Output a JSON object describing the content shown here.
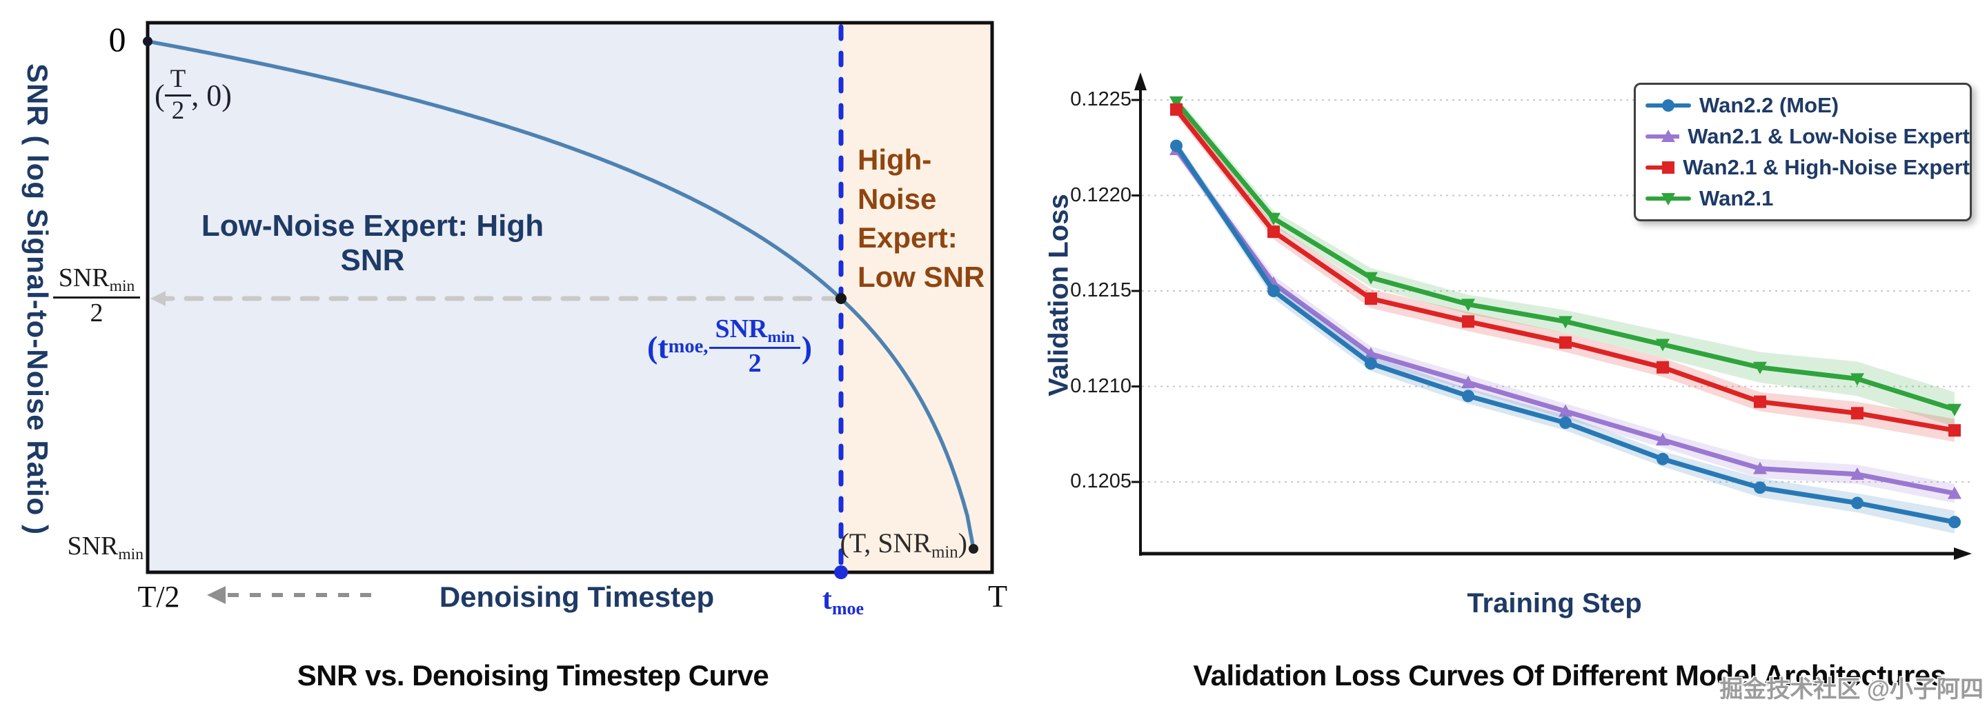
{
  "left_chart": {
    "caption": "SNR vs. Denoising Timestep Curve",
    "y_axis_title": "SNR ( log Signal-to-Noise Ratio )",
    "x_axis_title": "Denoising Timestep",
    "y_ticks": {
      "zero": "0",
      "frac_num_base": "SNR",
      "frac_num_sub": "min",
      "frac_den": "2",
      "min_base": "SNR",
      "min_sub": "min"
    },
    "x_ticks": {
      "left": "T/2",
      "moe_base": "t",
      "moe_sub": "moe",
      "right": "T"
    },
    "regions": {
      "low_noise_label": "Low-Noise Expert: High SNR",
      "high_noise_lines": [
        "High-",
        "Noise",
        "Expert:",
        "Low SNR"
      ]
    },
    "annotations": {
      "start_open": "(",
      "start_num": "T",
      "start_den": "2",
      "start_rest": ", 0)",
      "moe_open": "(t",
      "moe_sub": "moe,",
      "moe_num_base": "SNR",
      "moe_num_sub": "min",
      "moe_den": "2",
      "moe_close": ")",
      "end_open": "(T, ",
      "end_base": "SNR",
      "end_sub": "min",
      "end_close": ")"
    },
    "colors": {
      "low_region": "#e9edf5",
      "high_region": "#fcf1e4",
      "curve": "#4d82b2",
      "tmoe_line": "#1b2ed9",
      "annotation_blue": "#1633d2",
      "navy": "#1e3a66",
      "brown": "#8f4511",
      "dashed_gray": "#c9c9c9"
    }
  },
  "right_chart": {
    "caption": "Validation Loss Curves Of Different Model Architectures",
    "chart_data": {
      "type": "line",
      "title": "Validation Loss Curves Of Different Model Architectures",
      "xlabel": "Training Step",
      "ylabel": "Validation Loss",
      "x": [
        1,
        2,
        3,
        4,
        5,
        6,
        7,
        8,
        9
      ],
      "x_tick_labels": [],
      "y_ticks": [
        0.1225,
        0.122,
        0.1215,
        0.121,
        0.1205
      ],
      "y_tick_labels": [
        "0.1225",
        "0.1220",
        "0.1215",
        "0.1210",
        "0.1205"
      ],
      "ylim": [
        0.12015,
        0.12285
      ],
      "grid": true,
      "legend_position": "upper right",
      "series": [
        {
          "name": "Wan2.2 (MoE)",
          "color": "#2878b5",
          "marker": "circle",
          "values": [
            0.12226,
            0.1215,
            0.12112,
            0.12095,
            0.12081,
            0.12062,
            0.12047,
            0.12039,
            0.12029
          ],
          "band_halfwidth": [
            3e-05,
            4e-05,
            4e-05,
            4e-05,
            4e-05,
            4e-05,
            5e-05,
            5e-05,
            6e-05
          ]
        },
        {
          "name": "Wan2.1 & Low-Noise Expert",
          "color": "#9a77d1",
          "marker": "triangle-up",
          "values": [
            0.12224,
            0.12154,
            0.12117,
            0.12102,
            0.12087,
            0.12072,
            0.12057,
            0.12054,
            0.12044
          ],
          "band_halfwidth": [
            3e-05,
            4e-05,
            4e-05,
            4e-05,
            4e-05,
            4e-05,
            5e-05,
            5e-05,
            5e-05
          ]
        },
        {
          "name": "Wan2.1 & High-Noise Expert",
          "color": "#dd2323",
          "marker": "square",
          "values": [
            0.12245,
            0.12181,
            0.12146,
            0.12134,
            0.12123,
            0.1211,
            0.12092,
            0.12086,
            0.12077
          ],
          "band_halfwidth": [
            3e-05,
            4e-05,
            5e-05,
            5e-05,
            5e-05,
            5e-05,
            5e-05,
            6e-05,
            6e-05
          ]
        },
        {
          "name": "Wan2.1",
          "color": "#2fa43c",
          "marker": "triangle-down",
          "values": [
            0.12249,
            0.12188,
            0.12157,
            0.12143,
            0.12134,
            0.12122,
            0.1211,
            0.12104,
            0.12088
          ],
          "band_halfwidth": [
            3e-05,
            4e-05,
            5e-05,
            5e-05,
            6e-05,
            7e-05,
            8e-05,
            9e-05,
            9e-05
          ]
        }
      ]
    }
  },
  "watermark": "掘金技术社区 @小子阿四"
}
